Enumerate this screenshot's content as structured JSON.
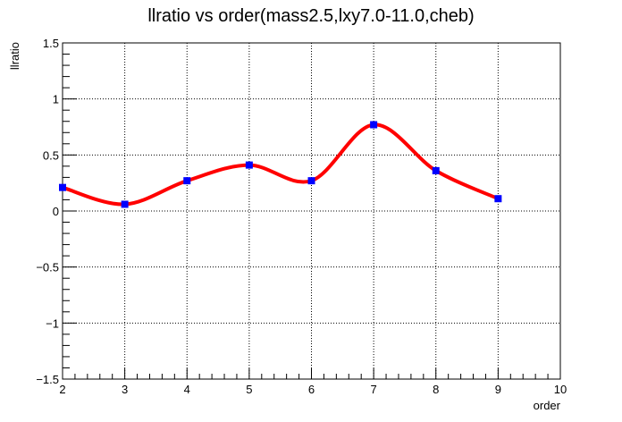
{
  "chart_data": {
    "type": "line",
    "title": "llratio vs order(mass2.5,lxy7.0-11.0,cheb)",
    "xlabel": "order",
    "ylabel": "llratio",
    "xlim": [
      2,
      10
    ],
    "ylim": [
      -1.5,
      1.5
    ],
    "x_ticks": [
      2,
      3,
      4,
      5,
      6,
      7,
      8,
      9,
      10
    ],
    "x_tick_labels": [
      "2",
      "3",
      "4",
      "5",
      "6",
      "7",
      "8",
      "9",
      "10"
    ],
    "y_ticks": [
      -1.5,
      -1,
      -0.5,
      0,
      0.5,
      1,
      1.5
    ],
    "y_tick_labels": [
      "−1.5",
      "−1",
      "−0.5",
      "0",
      "0.5",
      "1",
      "1.5"
    ],
    "grid": true,
    "series": [
      {
        "x": [
          2,
          3,
          4,
          5,
          6,
          7,
          8,
          9
        ],
        "values": [
          0.21,
          0.06,
          0.27,
          0.41,
          0.27,
          0.77,
          0.36,
          0.11
        ],
        "line_color": "#ff0000",
        "marker_color": "#0000ff",
        "marker": "square",
        "smooth": true
      }
    ]
  }
}
